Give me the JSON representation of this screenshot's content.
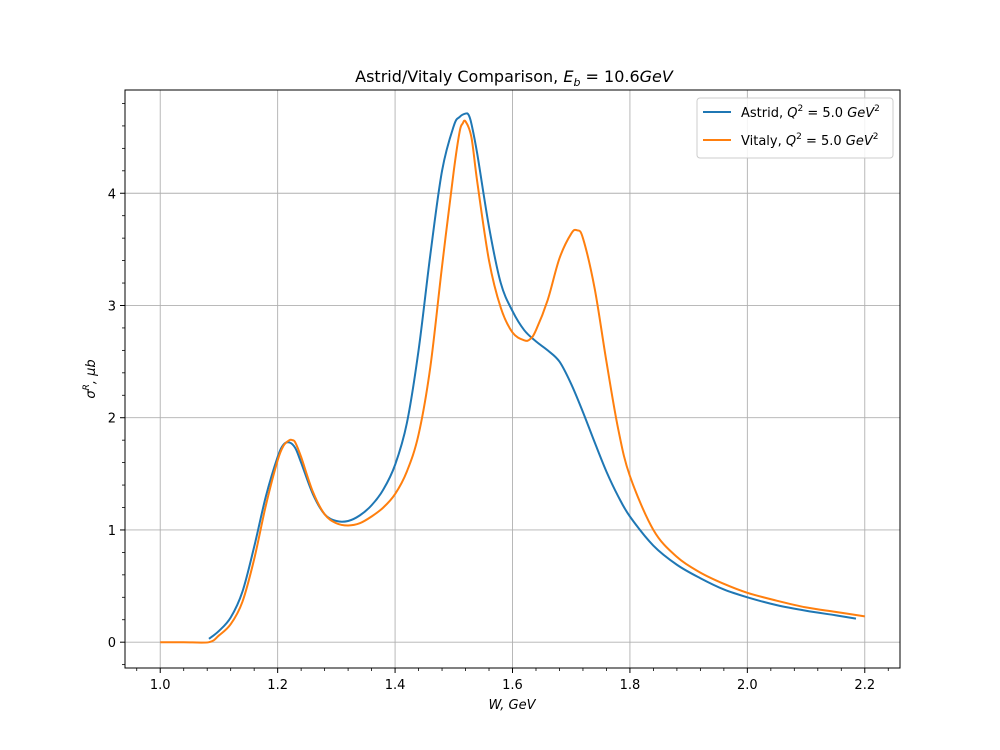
{
  "chart_data": {
    "type": "line",
    "title": "Astrid/Vitaly Comparison, E_b = 10.6GeV",
    "title_parts": {
      "text": "Astrid/Vitaly Comparison, ",
      "sym": "E",
      "sub": "b",
      "eq": " = 10.6",
      "unit": "GeV"
    },
    "xlabel": "W, GeV",
    "ylabel": "σ^R, μb",
    "xlim": [
      0.94,
      2.26
    ],
    "ylim": [
      -0.23,
      4.92
    ],
    "xticks": [
      1.0,
      1.2,
      1.4,
      1.6,
      1.8,
      2.0,
      2.2
    ],
    "xtick_labels": [
      "1.0",
      "1.2",
      "1.4",
      "1.6",
      "1.8",
      "2.0",
      "2.2"
    ],
    "yticks": [
      0,
      1,
      2,
      3,
      4
    ],
    "ytick_labels": [
      "0",
      "1",
      "2",
      "3",
      "4"
    ],
    "grid": true,
    "legend_position": "top-right",
    "series": [
      {
        "name": "Astrid, Q² = 5.0 GeV²",
        "label_prefix": "Astrid, ",
        "color": "#1f77b4",
        "x": [
          1.083,
          1.1,
          1.12,
          1.14,
          1.16,
          1.18,
          1.2,
          1.21,
          1.22,
          1.23,
          1.24,
          1.26,
          1.28,
          1.3,
          1.32,
          1.34,
          1.36,
          1.38,
          1.4,
          1.42,
          1.44,
          1.46,
          1.48,
          1.5,
          1.51,
          1.52,
          1.525,
          1.53,
          1.54,
          1.56,
          1.58,
          1.6,
          1.62,
          1.64,
          1.66,
          1.68,
          1.7,
          1.72,
          1.74,
          1.76,
          1.78,
          1.8,
          1.84,
          1.88,
          1.92,
          1.96,
          2.0,
          2.05,
          2.1,
          2.15,
          2.185
        ],
        "y": [
          0.03,
          0.1,
          0.22,
          0.45,
          0.85,
          1.3,
          1.65,
          1.76,
          1.78,
          1.73,
          1.6,
          1.32,
          1.14,
          1.08,
          1.08,
          1.13,
          1.22,
          1.36,
          1.58,
          1.95,
          2.6,
          3.45,
          4.2,
          4.6,
          4.68,
          4.71,
          4.7,
          4.62,
          4.35,
          3.7,
          3.2,
          2.95,
          2.78,
          2.68,
          2.6,
          2.5,
          2.3,
          2.05,
          1.78,
          1.52,
          1.3,
          1.12,
          0.86,
          0.69,
          0.57,
          0.47,
          0.4,
          0.33,
          0.28,
          0.24,
          0.21
        ]
      },
      {
        "name": "Vitaly, Q² = 5.0 GeV²",
        "label_prefix": "Vitaly, ",
        "color": "#ff7f0e",
        "x": [
          1.0,
          1.04,
          1.083,
          1.1,
          1.12,
          1.14,
          1.16,
          1.18,
          1.2,
          1.21,
          1.22,
          1.225,
          1.23,
          1.24,
          1.26,
          1.28,
          1.3,
          1.32,
          1.34,
          1.36,
          1.38,
          1.4,
          1.42,
          1.44,
          1.46,
          1.48,
          1.5,
          1.51,
          1.515,
          1.52,
          1.53,
          1.54,
          1.56,
          1.58,
          1.6,
          1.62,
          1.63,
          1.64,
          1.66,
          1.68,
          1.7,
          1.71,
          1.72,
          1.74,
          1.76,
          1.78,
          1.8,
          1.84,
          1.88,
          1.92,
          1.96,
          2.0,
          2.05,
          2.1,
          2.15,
          2.2
        ],
        "y": [
          0.0,
          0.0,
          0.0,
          0.06,
          0.16,
          0.36,
          0.74,
          1.22,
          1.62,
          1.75,
          1.8,
          1.8,
          1.78,
          1.65,
          1.34,
          1.14,
          1.06,
          1.04,
          1.06,
          1.12,
          1.2,
          1.32,
          1.52,
          1.85,
          2.45,
          3.35,
          4.2,
          4.55,
          4.62,
          4.64,
          4.5,
          4.1,
          3.4,
          2.98,
          2.76,
          2.69,
          2.7,
          2.78,
          3.05,
          3.42,
          3.64,
          3.67,
          3.6,
          3.15,
          2.5,
          1.9,
          1.48,
          1.0,
          0.76,
          0.62,
          0.52,
          0.44,
          0.37,
          0.31,
          0.27,
          0.23
        ]
      }
    ]
  }
}
